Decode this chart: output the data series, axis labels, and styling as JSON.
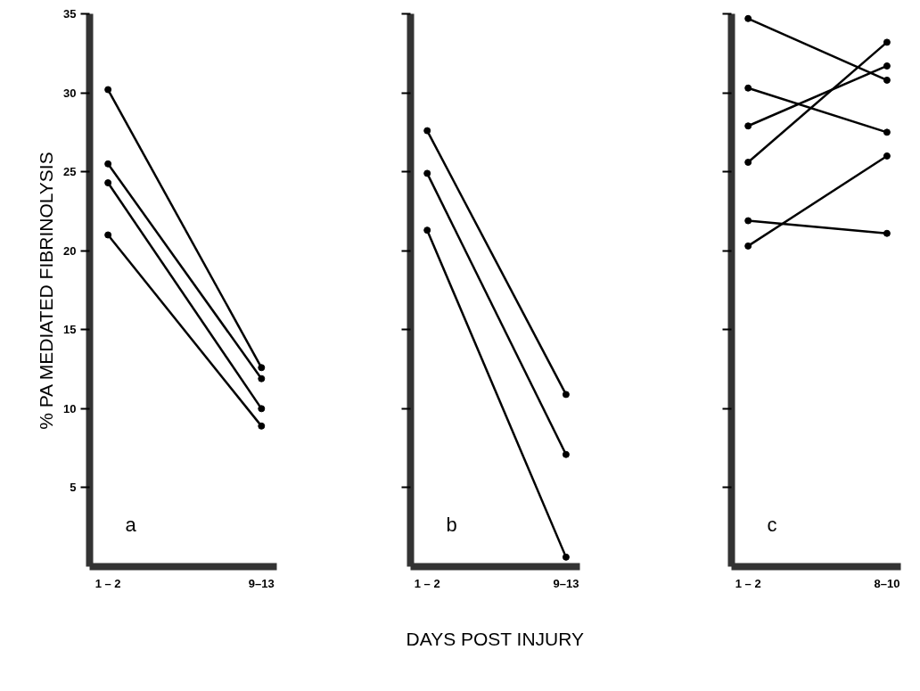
{
  "chart_data": [
    {
      "type": "line",
      "ylabel": "% PA MEDIATED FIBRINOLYSIS",
      "categories": [
        "1 – 2",
        "9–13"
      ],
      "marker": "circle",
      "ylim": [
        0,
        35
      ],
      "yticks": [
        5,
        10,
        15,
        20,
        25,
        30,
        35
      ],
      "annotations": [
        "a"
      ],
      "series": [
        {
          "color": "#000000",
          "values": [
            30.2,
            12.6
          ]
        },
        {
          "color": "#000000",
          "values": [
            25.5,
            11.9
          ]
        },
        {
          "color": "#000000",
          "values": [
            24.3,
            10.0
          ]
        },
        {
          "color": "#000000",
          "values": [
            21.0,
            8.9
          ]
        }
      ]
    },
    {
      "type": "line",
      "xlabel": "DAYS POST INJURY",
      "categories": [
        "1 – 2",
        "9–13"
      ],
      "marker": "circle",
      "ylim": [
        0,
        35
      ],
      "tick_labels": "x",
      "annotations": [
        "b"
      ],
      "yticks": [
        {
          "value": 5,
          "label": null
        },
        {
          "value": 10,
          "label": null
        },
        {
          "value": 15,
          "label": null
        },
        {
          "value": 20,
          "label": null
        },
        {
          "value": 25,
          "label": null
        },
        {
          "value": 30,
          "label": null
        },
        {
          "value": 35,
          "label": null
        }
      ],
      "series": [
        {
          "color": "#000000",
          "values": [
            27.6,
            10.9
          ]
        },
        {
          "color": "#000000",
          "values": [
            24.9,
            7.1
          ]
        },
        {
          "color": "#000000",
          "values": [
            21.3,
            0.6
          ]
        }
      ]
    },
    {
      "type": "line",
      "categories": [
        "1 – 2",
        "8–10"
      ],
      "marker": "circle",
      "ylim": [
        0,
        35
      ],
      "tick_labels": "x",
      "annotations": [
        "c"
      ],
      "yticks": [
        {
          "value": 5,
          "label": null
        },
        {
          "value": 10,
          "label": null
        },
        {
          "value": 15,
          "label": null
        },
        {
          "value": 20,
          "label": null
        },
        {
          "value": 25,
          "label": null
        },
        {
          "value": 30,
          "label": null
        },
        {
          "value": 35,
          "label": null
        }
      ],
      "series": [
        {
          "color": "#000000",
          "values": [
            34.7,
            30.8
          ]
        },
        {
          "color": "#000000",
          "values": [
            30.3,
            27.5
          ]
        },
        {
          "color": "#000000",
          "values": [
            27.9,
            31.7
          ]
        },
        {
          "color": "#000000",
          "values": [
            25.6,
            33.2
          ]
        },
        {
          "color": "#000000",
          "values": [
            21.9,
            21.1
          ]
        },
        {
          "color": "#000000",
          "values": [
            20.3,
            26.0
          ]
        }
      ]
    }
  ]
}
